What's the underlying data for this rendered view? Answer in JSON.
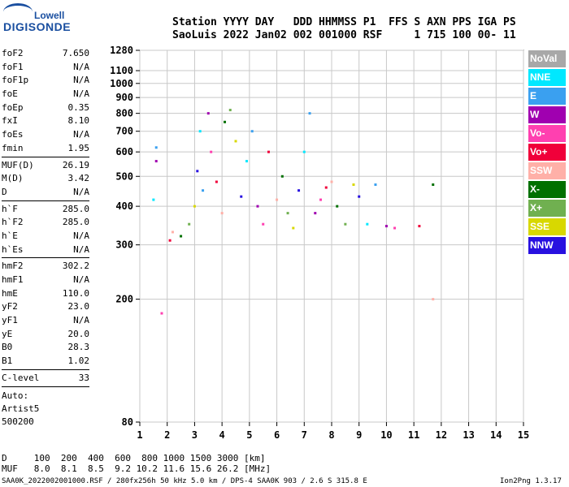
{
  "logo": {
    "brand_top": "Lowell",
    "brand_bottom": "DIGISONDE"
  },
  "header": {
    "line1": "Station YYYY DAY   DDD HHMMSS P1  FFS S AXN PPS IGA PS",
    "line2": "SaoLuis 2022 Jan02 002 001000 RSF     1 715 100 00- 11"
  },
  "params_group1": [
    {
      "name": "foF2",
      "value": "7.650"
    },
    {
      "name": "foF1",
      "value": "N/A"
    },
    {
      "name": "foF1p",
      "value": "N/A"
    },
    {
      "name": "foE",
      "value": "N/A"
    },
    {
      "name": "foEp",
      "value": "0.35"
    },
    {
      "name": "fxI",
      "value": "8.10"
    },
    {
      "name": "foEs",
      "value": "N/A"
    },
    {
      "name": "fmin",
      "value": "1.95"
    }
  ],
  "params_group2": [
    {
      "name": "MUF(D)",
      "value": "26.19"
    },
    {
      "name": "M(D)",
      "value": "3.42"
    },
    {
      "name": "D",
      "value": "N/A"
    }
  ],
  "params_group3": [
    {
      "name": "h`F",
      "value": "285.0"
    },
    {
      "name": "h`F2",
      "value": "285.0"
    },
    {
      "name": "h`E",
      "value": "N/A"
    },
    {
      "name": "h`Es",
      "value": "N/A"
    }
  ],
  "params_group4": [
    {
      "name": "hmF2",
      "value": "302.2"
    },
    {
      "name": "hmF1",
      "value": "N/A"
    },
    {
      "name": "hmE",
      "value": "110.0"
    },
    {
      "name": "yF2",
      "value": "23.0"
    },
    {
      "name": "yF1",
      "value": "N/A"
    },
    {
      "name": "yE",
      "value": "20.0"
    },
    {
      "name": "B0",
      "value": "28.3"
    },
    {
      "name": "B1",
      "value": "1.02"
    }
  ],
  "params_group5": [
    {
      "name": "C-level",
      "value": "33"
    }
  ],
  "auto": {
    "line1": "Auto:",
    "line2": "Artist5",
    "line3": "500200"
  },
  "legend": [
    {
      "label": "NoVal",
      "color": "#a8a8a8"
    },
    {
      "label": "NNE",
      "color": "#00e8ff"
    },
    {
      "label": "E",
      "color": "#3aa0f0"
    },
    {
      "label": "W",
      "color": "#a000b0"
    },
    {
      "label": "Vo-",
      "color": "#ff40b0"
    },
    {
      "label": "Vo+",
      "color": "#f0003a"
    },
    {
      "label": "SSW",
      "color": "#ffb0a8"
    },
    {
      "label": "X-",
      "color": "#007000"
    },
    {
      "label": "X+",
      "color": "#70b050"
    },
    {
      "label": "SSE",
      "color": "#d8d800"
    },
    {
      "label": "NNW",
      "color": "#2810e0"
    }
  ],
  "muf_table": {
    "d_line": "D     100  200  400  600  800 1000 1500 3000 [km]",
    "muf_line": "MUF   8.0  8.1  8.5  9.2 10.2 11.6 15.6 26.2 [MHz]"
  },
  "footer": {
    "left": "SAA0K_2022002001000.RSF / 280fx256h 50 kHz 5.0 km / DPS-4 SAA0K 903 / 2.6 S 315.8 E",
    "right": "Ion2Png 1.3.17"
  },
  "chart_data": {
    "type": "scatter",
    "title": "",
    "xlabel": "",
    "ylabel": "",
    "xlim": [
      1,
      15
    ],
    "ylim": [
      80,
      1280
    ],
    "x_ticks": [
      1,
      2,
      3,
      4,
      5,
      6,
      7,
      8,
      9,
      10,
      11,
      12,
      13,
      14,
      15
    ],
    "y_ticks": [
      80,
      200,
      300,
      400,
      500,
      600,
      700,
      800,
      900,
      1000,
      1100,
      1280
    ],
    "y_scale": "log",
    "grid": true,
    "series": [
      {
        "values_desc": "echo",
        "points": [
          [
            1.5,
            420
          ],
          [
            1.6,
            620
          ],
          [
            1.6,
            560
          ],
          [
            1.8,
            180
          ],
          [
            2.1,
            310
          ],
          [
            2.2,
            330
          ],
          [
            2.5,
            320
          ],
          [
            2.8,
            350
          ],
          [
            3.0,
            400
          ],
          [
            3.1,
            520
          ],
          [
            3.2,
            700
          ],
          [
            3.3,
            450
          ],
          [
            3.5,
            800
          ],
          [
            3.6,
            600
          ],
          [
            3.8,
            480
          ],
          [
            4.0,
            380
          ],
          [
            4.1,
            750
          ],
          [
            4.3,
            820
          ],
          [
            4.5,
            650
          ],
          [
            4.7,
            430
          ],
          [
            4.9,
            560
          ],
          [
            5.1,
            700
          ],
          [
            5.3,
            400
          ],
          [
            5.5,
            350
          ],
          [
            5.7,
            600
          ],
          [
            6.0,
            420
          ],
          [
            6.2,
            500
          ],
          [
            6.4,
            380
          ],
          [
            6.6,
            340
          ],
          [
            6.8,
            450
          ],
          [
            7.0,
            600
          ],
          [
            7.2,
            800
          ],
          [
            7.4,
            380
          ],
          [
            7.6,
            420
          ],
          [
            7.8,
            460
          ],
          [
            8.0,
            480
          ],
          [
            8.2,
            400
          ],
          [
            8.5,
            350
          ],
          [
            8.8,
            470
          ],
          [
            9.0,
            430
          ],
          [
            9.3,
            350
          ],
          [
            9.6,
            470
          ],
          [
            10.0,
            345
          ],
          [
            10.3,
            340
          ],
          [
            11.2,
            345
          ],
          [
            11.7,
            200
          ],
          [
            11.7,
            470
          ]
        ]
      }
    ]
  }
}
